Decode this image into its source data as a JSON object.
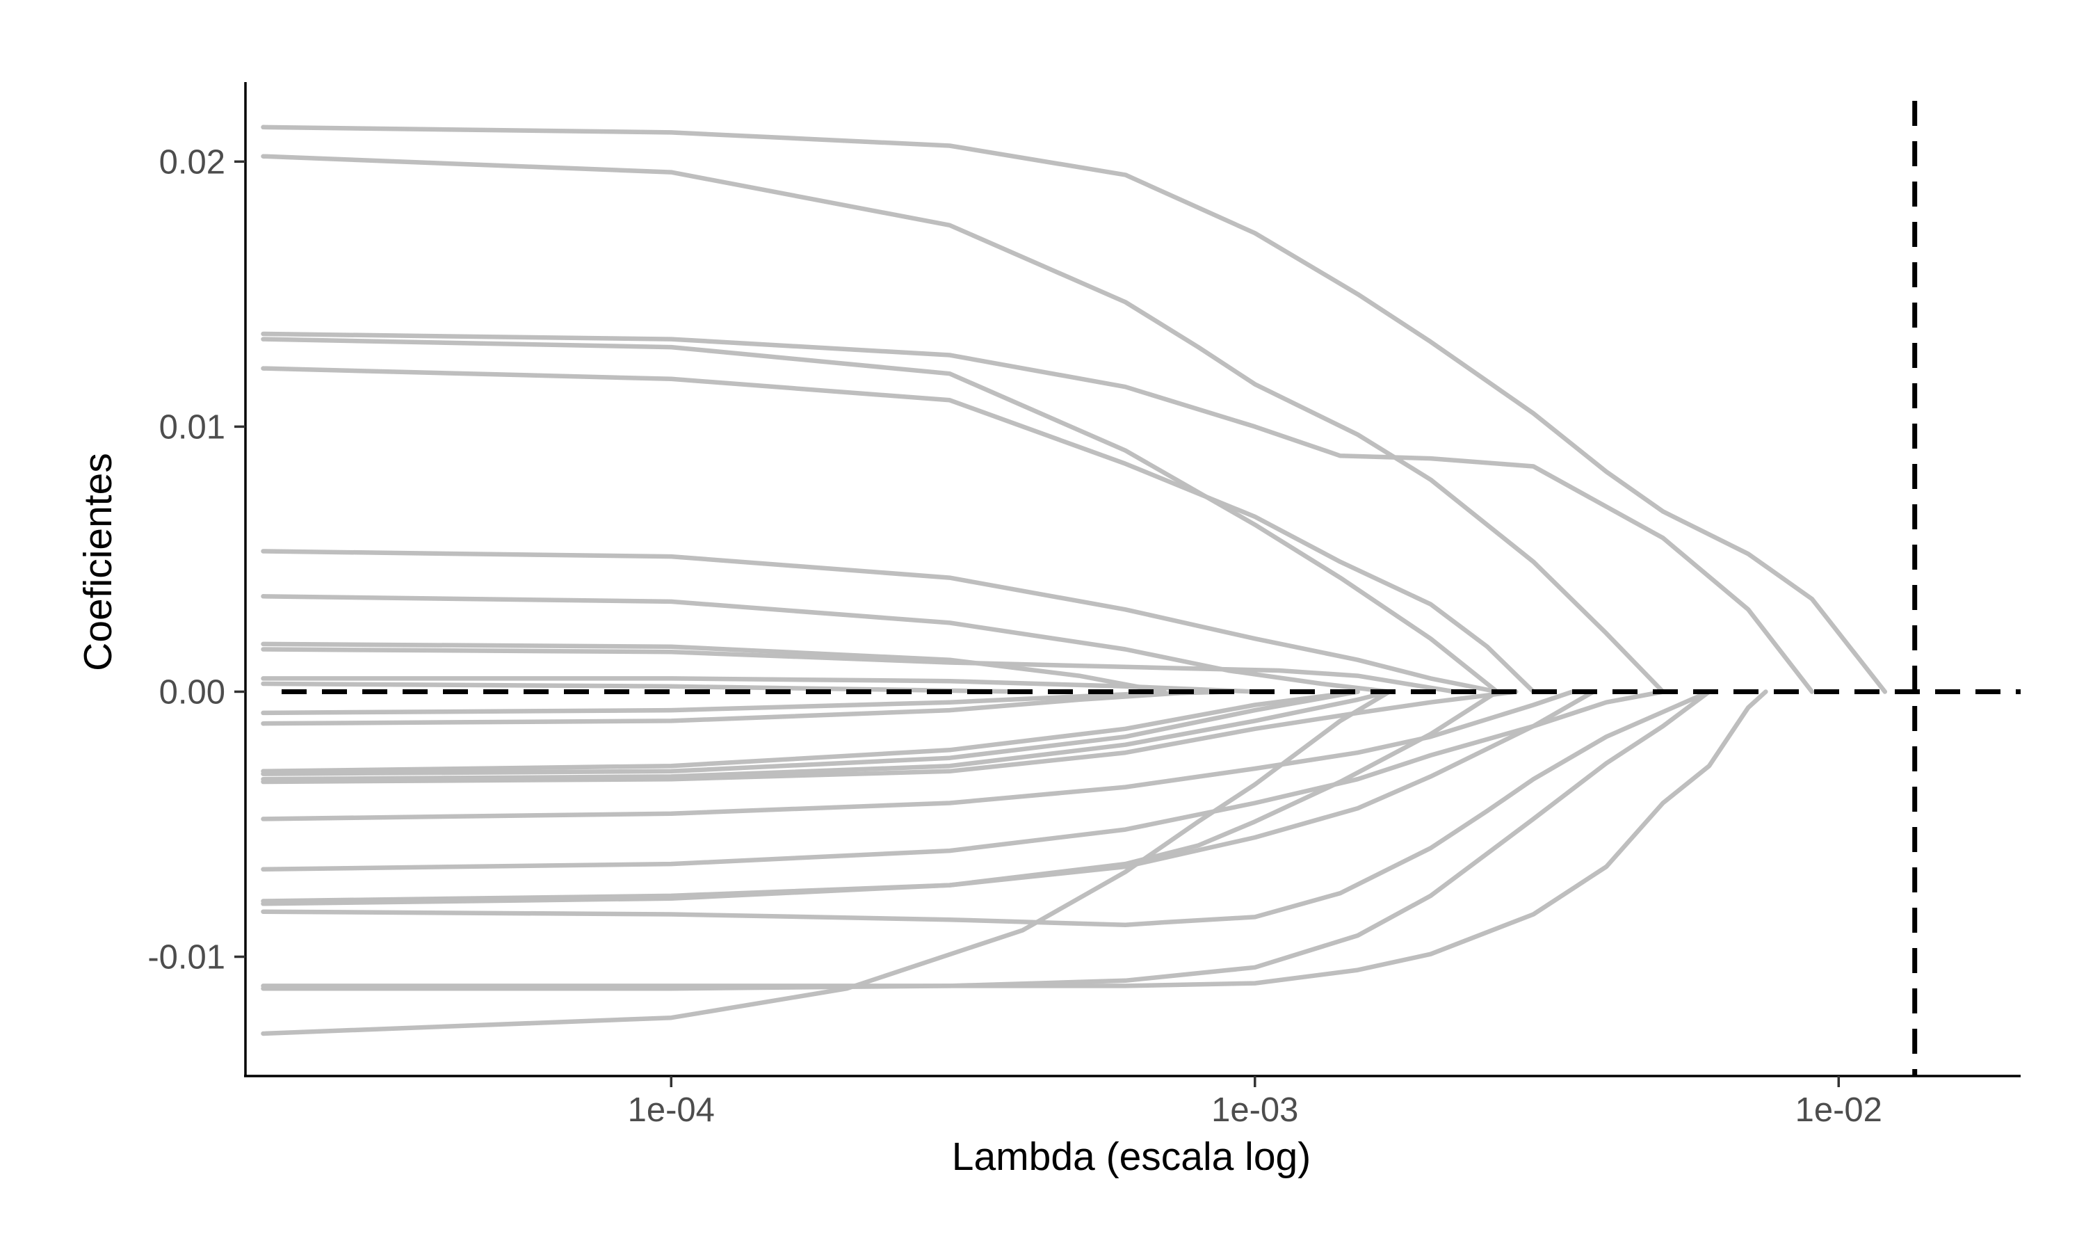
{
  "chart_data": {
    "type": "line",
    "xlabel": "Lambda (escala log)",
    "ylabel": "Coeficientes",
    "x_scale": "log10",
    "xlim": [
      1.865e-05,
      0.0205
    ],
    "ylim": [
      -0.0145,
      0.023
    ],
    "x_ticks": [
      0.0001,
      0.001,
      0.01
    ],
    "x_tick_labels": [
      "1e-04",
      "1e-03",
      "1e-02"
    ],
    "y_ticks": [
      0.02,
      0.01,
      0.0,
      -0.01
    ],
    "y_tick_labels": [
      "0.02",
      "0.01",
      "0.00",
      "-0.01"
    ],
    "grid": false,
    "legend": "none",
    "line_color": "#bebebe",
    "reference_lines": [
      {
        "orientation": "horizontal",
        "value": 0.0,
        "style": "dashed",
        "color": "#000000"
      },
      {
        "orientation": "vertical",
        "value": 0.0135,
        "style": "dashed",
        "color": "#000000"
      }
    ],
    "series": [
      {
        "x": [
          2e-05,
          0.0001,
          0.0003,
          0.0006,
          0.001,
          0.0015,
          0.002,
          0.003,
          0.004,
          0.005,
          0.007,
          0.009,
          0.012
        ],
        "y": [
          0.0213,
          0.0211,
          0.0206,
          0.0195,
          0.0173,
          0.015,
          0.0132,
          0.0105,
          0.0083,
          0.0068,
          0.0052,
          0.0035,
          0.0
        ]
      },
      {
        "x": [
          2e-05,
          0.0001,
          0.0003,
          0.0006,
          0.0008,
          0.001,
          0.0015,
          0.002,
          0.003,
          0.004,
          0.005
        ],
        "y": [
          0.0202,
          0.0196,
          0.0176,
          0.0147,
          0.013,
          0.0116,
          0.0097,
          0.008,
          0.0049,
          0.0022,
          0.0
        ]
      },
      {
        "x": [
          2e-05,
          0.0001,
          0.0003,
          0.0006,
          0.001,
          0.0014,
          0.002,
          0.003,
          0.005,
          0.007,
          0.009
        ],
        "y": [
          0.0135,
          0.0133,
          0.0127,
          0.0115,
          0.01,
          0.0089,
          0.0088,
          0.0085,
          0.0058,
          0.0031,
          0.0
        ]
      },
      {
        "x": [
          2e-05,
          0.0001,
          0.0003,
          0.0006,
          0.001,
          0.0014,
          0.002,
          0.0026
        ],
        "y": [
          0.0133,
          0.013,
          0.012,
          0.0091,
          0.0063,
          0.0043,
          0.002,
          0.0
        ]
      },
      {
        "x": [
          2e-05,
          0.0001,
          0.0003,
          0.0006,
          0.001,
          0.0014,
          0.002,
          0.0025,
          0.003
        ],
        "y": [
          0.0122,
          0.0118,
          0.011,
          0.0086,
          0.0066,
          0.0049,
          0.0033,
          0.0017,
          0.0
        ]
      },
      {
        "x": [
          2e-05,
          0.0001,
          0.0003,
          0.0006,
          0.001,
          0.0015,
          0.002,
          0.0026
        ],
        "y": [
          0.0053,
          0.0051,
          0.0043,
          0.0031,
          0.002,
          0.0012,
          0.0005,
          0.0
        ]
      },
      {
        "x": [
          2e-05,
          0.0001,
          0.0003,
          0.0006,
          0.0009,
          0.0013,
          0.0017
        ],
        "y": [
          0.0036,
          0.0034,
          0.0026,
          0.0016,
          0.0008,
          0.0003,
          0.0
        ]
      },
      {
        "x": [
          2e-05,
          0.0001,
          0.0003,
          0.0005,
          0.0007
        ],
        "y": [
          0.0018,
          0.0017,
          0.0012,
          0.0006,
          0.0
        ]
      },
      {
        "x": [
          2e-05,
          0.0001,
          0.0003,
          0.0007,
          0.0011,
          0.0015,
          0.0022
        ],
        "y": [
          0.0016,
          0.0015,
          0.0011,
          0.0009,
          0.0008,
          0.0006,
          0.0
        ]
      },
      {
        "x": [
          2e-05,
          0.0001,
          0.0003,
          0.0006,
          0.001
        ],
        "y": [
          0.0005,
          0.0005,
          0.0004,
          0.0002,
          0.0
        ]
      },
      {
        "x": [
          2e-05,
          0.0001,
          0.0002,
          0.0004
        ],
        "y": [
          0.0003,
          0.0002,
          0.0001,
          0.0
        ]
      },
      {
        "x": [
          2e-05,
          0.0001,
          0.0003,
          0.0006,
          0.0009
        ],
        "y": [
          -0.0008,
          -0.0007,
          -0.0004,
          -0.0001,
          0.0
        ]
      },
      {
        "x": [
          2e-05,
          0.0001,
          0.0003,
          0.0005,
          0.0008
        ],
        "y": [
          -0.0012,
          -0.0011,
          -0.0007,
          -0.0003,
          0.0
        ]
      },
      {
        "x": [
          2e-05,
          0.0001,
          0.0003,
          0.0006,
          0.001,
          0.0015
        ],
        "y": [
          -0.003,
          -0.0028,
          -0.0022,
          -0.0014,
          -0.0005,
          0.0
        ]
      },
      {
        "x": [
          2e-05,
          0.0001,
          0.0003,
          0.0006,
          0.001,
          0.0015
        ],
        "y": [
          -0.0031,
          -0.003,
          -0.0025,
          -0.0017,
          -0.0007,
          0.0
        ]
      },
      {
        "x": [
          2e-05,
          0.0001,
          0.0003,
          0.0006,
          0.001,
          0.0015,
          0.0017
        ],
        "y": [
          -0.0033,
          -0.0032,
          -0.0028,
          -0.002,
          -0.0011,
          -0.0003,
          0.0
        ]
      },
      {
        "x": [
          2e-05,
          0.0001,
          0.0003,
          0.0006,
          0.001,
          0.0015,
          0.002,
          0.0028
        ],
        "y": [
          -0.0034,
          -0.0033,
          -0.003,
          -0.0023,
          -0.0014,
          -0.0008,
          -0.0004,
          0.0
        ]
      },
      {
        "x": [
          2e-05,
          0.0001,
          0.0003,
          0.0006,
          0.001,
          0.0015,
          0.002,
          0.003,
          0.0035
        ],
        "y": [
          -0.0048,
          -0.0046,
          -0.0042,
          -0.0036,
          -0.0029,
          -0.0023,
          -0.0017,
          -0.0005,
          0.0
        ]
      },
      {
        "x": [
          2e-05,
          0.0001,
          0.0003,
          0.0006,
          0.001,
          0.0015,
          0.002,
          0.003,
          0.004,
          0.005
        ],
        "y": [
          -0.0067,
          -0.0065,
          -0.006,
          -0.0052,
          -0.0042,
          -0.0033,
          -0.0024,
          -0.0013,
          -0.0004,
          0.0
        ]
      },
      {
        "x": [
          2e-05,
          0.0001,
          0.0003,
          0.0006,
          0.0008,
          0.001,
          0.0014,
          0.002,
          0.0026
        ],
        "y": [
          -0.0079,
          -0.0077,
          -0.0073,
          -0.0065,
          -0.0058,
          -0.0049,
          -0.0034,
          -0.0016,
          0.0
        ]
      },
      {
        "x": [
          2e-05,
          0.0001,
          0.0003,
          0.0006,
          0.001,
          0.0015,
          0.002,
          0.003,
          0.0038
        ],
        "y": [
          -0.008,
          -0.0078,
          -0.0073,
          -0.0066,
          -0.0055,
          -0.0044,
          -0.0032,
          -0.0013,
          0.0
        ]
      },
      {
        "x": [
          2e-05,
          0.0001,
          0.0003,
          0.0006,
          0.0007,
          0.001,
          0.0014,
          0.002,
          0.0025,
          0.003,
          0.004,
          0.006
        ],
        "y": [
          -0.0083,
          -0.0084,
          -0.0086,
          -0.0088,
          -0.0087,
          -0.0085,
          -0.0076,
          -0.0059,
          -0.0045,
          -0.0033,
          -0.0017,
          0.0
        ]
      },
      {
        "x": [
          2e-05,
          0.0001,
          0.0003,
          0.0006,
          0.001,
          0.0015,
          0.002,
          0.003,
          0.004,
          0.005,
          0.006,
          0.007,
          0.0075
        ],
        "y": [
          -0.0111,
          -0.0111,
          -0.0111,
          -0.0111,
          -0.011,
          -0.0105,
          -0.0099,
          -0.0084,
          -0.0066,
          -0.0042,
          -0.0028,
          -0.0006,
          0.0
        ]
      },
      {
        "x": [
          2e-05,
          0.0001,
          0.0003,
          0.0006,
          0.001,
          0.0015,
          0.002,
          0.003,
          0.004,
          0.005,
          0.006
        ],
        "y": [
          -0.0112,
          -0.0112,
          -0.0111,
          -0.0109,
          -0.0104,
          -0.0092,
          -0.0077,
          -0.0048,
          -0.0027,
          -0.0013,
          0.0
        ]
      },
      {
        "x": [
          2e-05,
          0.0001,
          0.0002,
          0.0004,
          0.0006,
          0.0008,
          0.001,
          0.0014,
          0.0017
        ],
        "y": [
          -0.0129,
          -0.0123,
          -0.0112,
          -0.009,
          -0.0068,
          -0.0049,
          -0.0035,
          -0.0011,
          0.0
        ]
      }
    ]
  }
}
